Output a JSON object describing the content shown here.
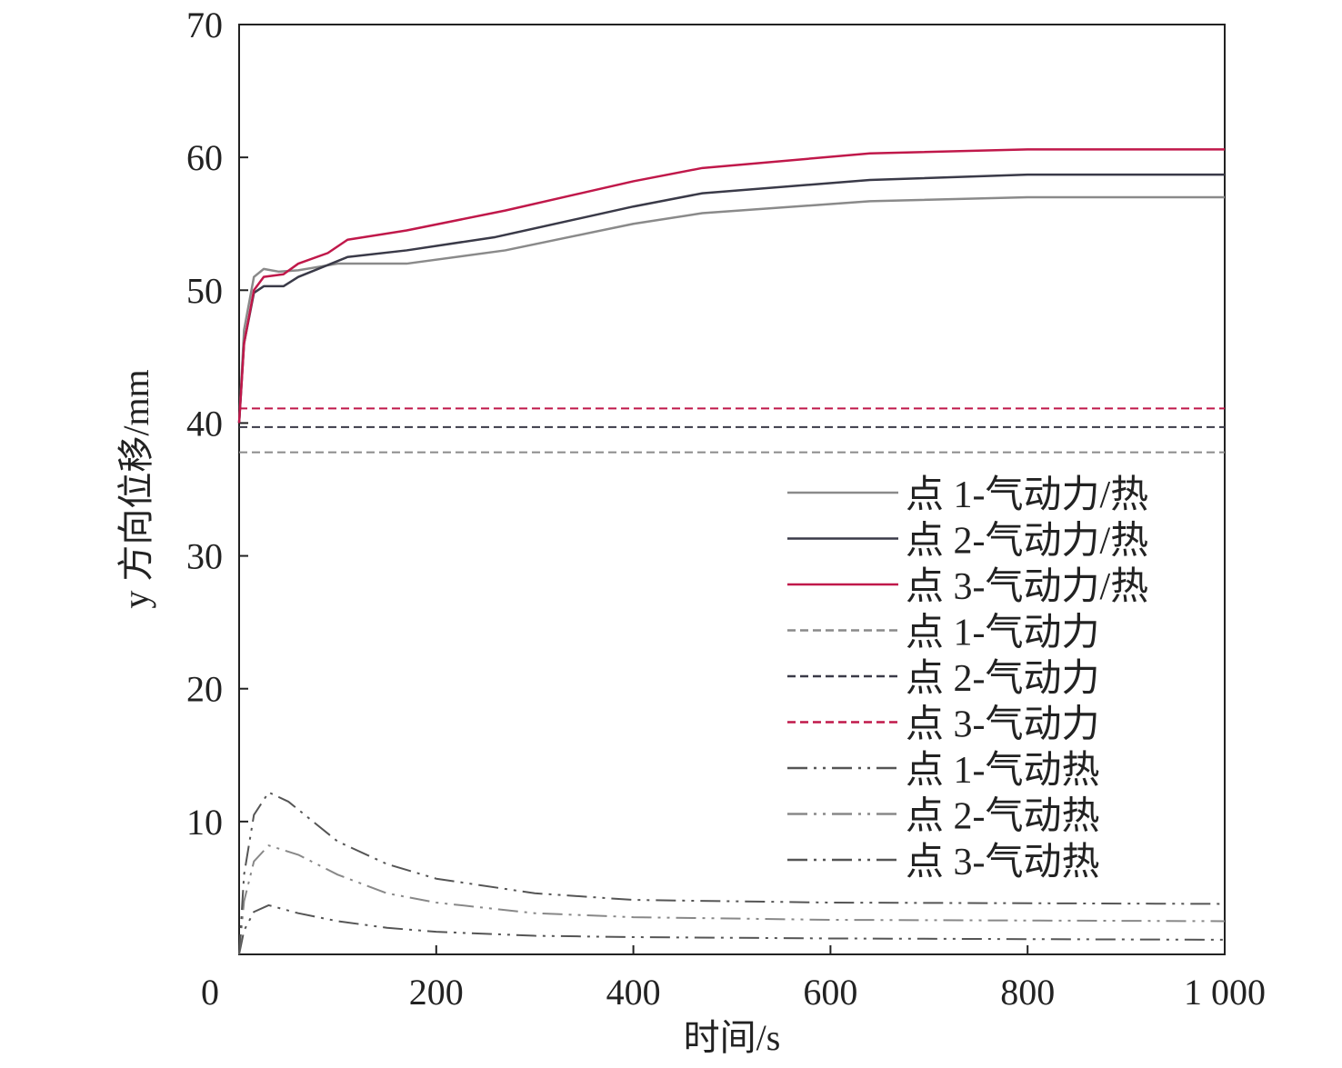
{
  "chart_data": {
    "type": "line",
    "xlabel": "时间/s",
    "ylabel": "y 方向位移/mm",
    "xlim": [
      0,
      1000
    ],
    "ylim": [
      0,
      70
    ],
    "xticks": [
      0,
      200,
      400,
      600,
      800,
      1000
    ],
    "xtick_labels": [
      "0",
      "200",
      "400",
      "600",
      "800",
      "1 000"
    ],
    "yticks": [
      10,
      20,
      30,
      40,
      50,
      60,
      70
    ],
    "ytick_labels": [
      "10",
      "20",
      "30",
      "40",
      "50",
      "60",
      "70"
    ],
    "grid": false,
    "legend_position": "center-right",
    "series": [
      {
        "name": "点 1-气动力/热",
        "color": "#8a8a8a",
        "style": "solid",
        "x": [
          0,
          5,
          15,
          25,
          40,
          60,
          100,
          170,
          270,
          400,
          470,
          640,
          800,
          1000
        ],
        "y": [
          40,
          47,
          51,
          51.6,
          51.4,
          51.5,
          52,
          52,
          53,
          55,
          55.8,
          56.7,
          57,
          57
        ]
      },
      {
        "name": "点 2-气动力/热",
        "color": "#3a3a48",
        "style": "solid",
        "x": [
          0,
          5,
          15,
          25,
          45,
          60,
          110,
          170,
          260,
          400,
          470,
          640,
          800,
          1000
        ],
        "y": [
          40,
          46,
          49.8,
          50.3,
          50.3,
          51,
          52.5,
          53,
          54,
          56.3,
          57.3,
          58.3,
          58.7,
          58.7
        ]
      },
      {
        "name": "点 3-气动力/热",
        "color": "#c0184a",
        "style": "solid",
        "x": [
          0,
          5,
          15,
          25,
          45,
          60,
          90,
          110,
          170,
          270,
          400,
          470,
          640,
          800,
          1000
        ],
        "y": [
          40,
          46,
          50,
          51,
          51.2,
          52,
          52.8,
          53.8,
          54.5,
          56,
          58.2,
          59.2,
          60.3,
          60.6,
          60.6
        ]
      },
      {
        "name": "点 1-气动力",
        "color": "#8a8a8a",
        "style": "dashed",
        "x": [
          0,
          1000
        ],
        "y": [
          37.8,
          37.8
        ]
      },
      {
        "name": "点 2-气动力",
        "color": "#3a3a48",
        "style": "dashed",
        "x": [
          0,
          1000
        ],
        "y": [
          39.7,
          39.7
        ]
      },
      {
        "name": "点 3-气动力",
        "color": "#c0184a",
        "style": "dashed",
        "x": [
          0,
          1000
        ],
        "y": [
          41.1,
          41.1
        ]
      },
      {
        "name": "点 1-气动热",
        "color": "#555",
        "style": "dashdotdot",
        "x": [
          0,
          5,
          15,
          30,
          60,
          100,
          150,
          200,
          300,
          400,
          600,
          1000
        ],
        "y": [
          0,
          1.8,
          3.2,
          3.7,
          3.1,
          2.5,
          2.0,
          1.7,
          1.4,
          1.3,
          1.2,
          1.1
        ]
      },
      {
        "name": "点 2-气动热",
        "color": "#888",
        "style": "dashdotdot",
        "x": [
          0,
          5,
          15,
          30,
          60,
          100,
          150,
          200,
          300,
          400,
          600,
          1000
        ],
        "y": [
          0,
          4,
          7,
          8.2,
          7.5,
          6,
          4.6,
          3.9,
          3.1,
          2.8,
          2.6,
          2.5
        ]
      },
      {
        "name": "点 3-气动热",
        "color": "#555",
        "style": "dashdotdot",
        "x": [
          0,
          5,
          15,
          30,
          50,
          100,
          150,
          200,
          300,
          400,
          600,
          1000
        ],
        "y": [
          0,
          6,
          10.5,
          12.2,
          11.5,
          8.5,
          6.8,
          5.7,
          4.6,
          4.1,
          3.9,
          3.8
        ]
      }
    ]
  }
}
